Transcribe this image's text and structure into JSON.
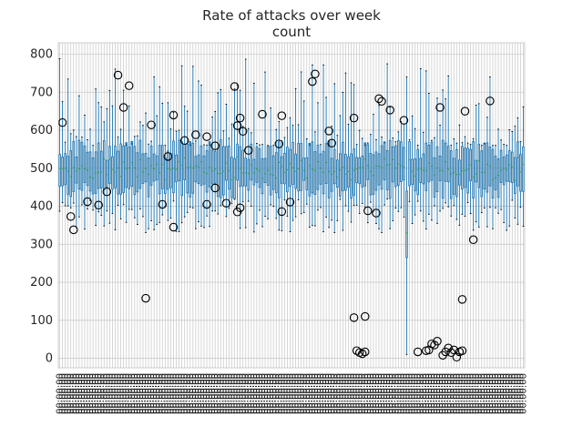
{
  "chart_data": {
    "type": "box",
    "title": "Rate of attacks over week",
    "subtitle": "count",
    "xlabel": "",
    "ylabel": "",
    "ylim": [
      -25,
      830
    ],
    "yticks": [
      0,
      100,
      200,
      300,
      400,
      500,
      600,
      700,
      800
    ],
    "grid": true,
    "legend": "none",
    "x_tick_label": "00:00:00",
    "n_boxes": 168,
    "colors": {
      "box": "#1f77b4",
      "median": "#2ca02c",
      "flier": "#000000",
      "grid": "#cccccc",
      "axes_edge": "#cccccc"
    },
    "boxes": {
      "median_range": [
        455,
        540
      ],
      "q1_range": [
        420,
        470
      ],
      "q3_range": [
        520,
        575
      ],
      "whisker_low_range": [
        330,
        420
      ],
      "whisker_high_range": [
        560,
        790
      ]
    },
    "anomaly": {
      "box_index": 125,
      "q1": 265,
      "median": 330,
      "q3": 440,
      "whisker_low": 10,
      "whisker_high": 740
    },
    "fliers": [
      [
        1,
        620
      ],
      [
        4,
        373
      ],
      [
        5,
        338
      ],
      [
        10,
        412
      ],
      [
        14,
        403
      ],
      [
        17,
        438
      ],
      [
        21,
        745
      ],
      [
        23,
        660
      ],
      [
        25,
        717
      ],
      [
        31,
        158
      ],
      [
        33,
        614
      ],
      [
        37,
        405
      ],
      [
        39,
        531
      ],
      [
        41,
        640
      ],
      [
        41,
        345
      ],
      [
        45,
        573
      ],
      [
        49,
        588
      ],
      [
        53,
        405
      ],
      [
        53,
        583
      ],
      [
        56,
        559
      ],
      [
        56,
        448
      ],
      [
        60,
        408
      ],
      [
        63,
        715
      ],
      [
        64,
        385
      ],
      [
        64,
        612
      ],
      [
        65,
        632
      ],
      [
        65,
        396
      ],
      [
        66,
        597
      ],
      [
        68,
        547
      ],
      [
        73,
        642
      ],
      [
        79,
        564
      ],
      [
        80,
        386
      ],
      [
        80,
        638
      ],
      [
        83,
        411
      ],
      [
        91,
        728
      ],
      [
        92,
        748
      ],
      [
        97,
        598
      ],
      [
        98,
        566
      ],
      [
        106,
        632
      ],
      [
        106,
        107
      ],
      [
        107,
        20
      ],
      [
        108,
        15
      ],
      [
        109,
        12
      ],
      [
        110,
        17
      ],
      [
        110,
        110
      ],
      [
        111,
        388
      ],
      [
        114,
        382
      ],
      [
        115,
        683
      ],
      [
        116,
        676
      ],
      [
        119,
        653
      ],
      [
        124,
        626
      ],
      [
        129,
        17
      ],
      [
        132,
        20
      ],
      [
        133,
        22
      ],
      [
        134,
        38
      ],
      [
        135,
        35
      ],
      [
        136,
        45
      ],
      [
        137,
        660
      ],
      [
        138,
        8
      ],
      [
        139,
        17
      ],
      [
        140,
        27
      ],
      [
        141,
        15
      ],
      [
        142,
        22
      ],
      [
        143,
        3
      ],
      [
        144,
        17
      ],
      [
        145,
        20
      ],
      [
        145,
        155
      ],
      [
        146,
        650
      ],
      [
        149,
        312
      ],
      [
        155,
        677
      ]
    ]
  }
}
